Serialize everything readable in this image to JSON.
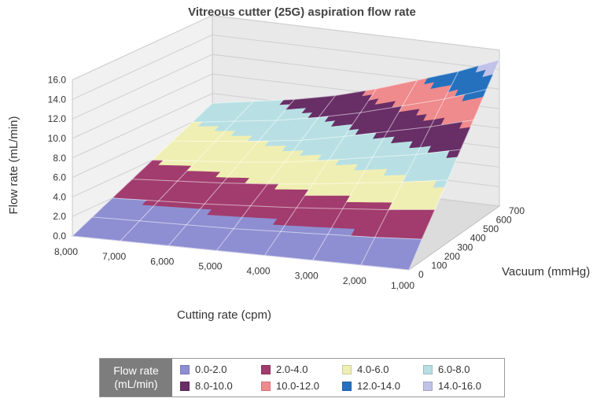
{
  "chart_data": {
    "type": "surface",
    "title": "Vitreous cutter (25G) aspiration flow rate",
    "zlabel": "Flow rate (mL/min)",
    "xlabel": "Cutting rate (cpm)",
    "ylabel": "Vacuum (mmHg)",
    "z_ticks": [
      "0.0",
      "2.0",
      "4.0",
      "6.0",
      "8.0",
      "10.0",
      "12.0",
      "14.0",
      "16.0"
    ],
    "x_ticks": [
      "8,000",
      "7,000",
      "6,000",
      "5,000",
      "4,000",
      "3,000",
      "2,000",
      "1,000"
    ],
    "y_ticks": [
      "0",
      "100",
      "200",
      "300",
      "400",
      "500",
      "600",
      "700"
    ],
    "zlim": [
      0,
      16
    ],
    "cutting_rate": [
      8000,
      7000,
      6000,
      5000,
      4000,
      3000,
      2000,
      1000
    ],
    "vacuum": [
      0,
      100,
      200,
      300,
      400,
      500,
      600,
      700
    ],
    "flow_rate": [
      [
        0,
        1.0,
        2.0,
        3.0,
        4.0,
        5.0,
        6.0,
        7.0
      ],
      [
        0,
        1.1,
        2.2,
        3.3,
        4.4,
        5.5,
        6.6,
        7.7
      ],
      [
        0,
        1.2,
        2.4,
        3.6,
        4.8,
        6.0,
        7.2,
        8.4
      ],
      [
        0,
        1.3,
        2.7,
        4.0,
        5.3,
        6.6,
        8.0,
        9.3
      ],
      [
        0,
        1.5,
        3.0,
        4.5,
        6.0,
        7.5,
        9.0,
        10.5
      ],
      [
        0,
        1.7,
        3.4,
        5.1,
        6.8,
        8.5,
        10.2,
        11.9
      ],
      [
        0,
        1.9,
        3.8,
        5.7,
        7.6,
        9.5,
        11.4,
        13.3
      ],
      [
        0,
        2.2,
        4.3,
        6.4,
        8.6,
        10.7,
        12.9,
        15.0
      ]
    ],
    "legend": {
      "title_line1": "Flow rate",
      "title_line2": "(mL/min)",
      "items": [
        {
          "label": "0.0-2.0",
          "color": "#8e8fd2"
        },
        {
          "label": "2.0-4.0",
          "color": "#a23c6e"
        },
        {
          "label": "4.0-6.0",
          "color": "#f0efb3"
        },
        {
          "label": "6.0-8.0",
          "color": "#b8e0e4"
        },
        {
          "label": "8.0-10.0",
          "color": "#682e66"
        },
        {
          "label": "10.0-12.0",
          "color": "#ef8a8d"
        },
        {
          "label": "12.0-14.0",
          "color": "#2571be"
        },
        {
          "label": "14.0-16.0",
          "color": "#c0c2e8"
        }
      ]
    }
  }
}
